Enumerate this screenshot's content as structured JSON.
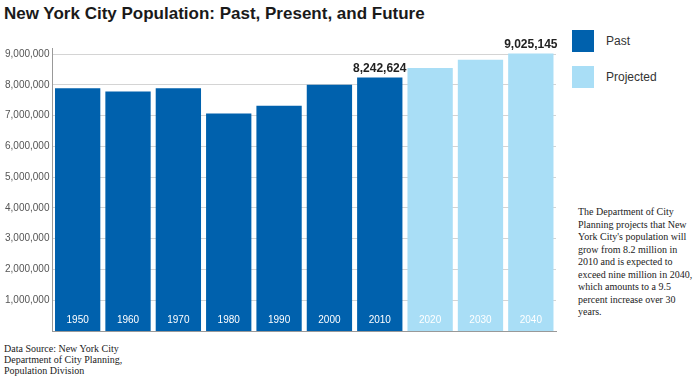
{
  "chart_data": {
    "type": "bar",
    "title": "New York City Population: Past, Present, and Future",
    "categories": [
      "1950",
      "1960",
      "1970",
      "1980",
      "1990",
      "2000",
      "2010",
      "2020",
      "2030",
      "2040"
    ],
    "series": [
      {
        "name": "Past",
        "color": "#0061ad",
        "values": [
          7891957,
          7781984,
          7894862,
          7071639,
          7322564,
          8008278,
          8242624,
          null,
          null,
          null
        ]
      },
      {
        "name": "Projected",
        "color": "#a9def6",
        "values": [
          null,
          null,
          null,
          null,
          null,
          null,
          null,
          8550971,
          8821027,
          9025145
        ]
      }
    ],
    "value_labels": [
      null,
      null,
      null,
      null,
      null,
      null,
      "8,242,624",
      null,
      null,
      "9,025,145"
    ],
    "ylim": [
      0,
      9200000
    ],
    "yticks": [
      {
        "value": 1000000,
        "label": "1,000,000"
      },
      {
        "value": 2000000,
        "label": "2,000,000"
      },
      {
        "value": 3000000,
        "label": "3,000,000"
      },
      {
        "value": 4000000,
        "label": "4,000,000"
      },
      {
        "value": 5000000,
        "label": "5,000,000"
      },
      {
        "value": 6000000,
        "label": "6,000,000"
      },
      {
        "value": 7000000,
        "label": "7,000,000"
      },
      {
        "value": 8000000,
        "label": "8,000,000"
      },
      {
        "value": 9000000,
        "label": "9,000,000"
      }
    ],
    "grid": true,
    "legend": "right",
    "annotation": "The Department of City Planning projects that New York City's population will grow from 8.2 million in 2010 and is expected to exceed nine million in 2040, which amounts to a 9.5 percent increase over 30 years.",
    "source": "Data Source: New York City Department of City Planning, Population Division"
  }
}
